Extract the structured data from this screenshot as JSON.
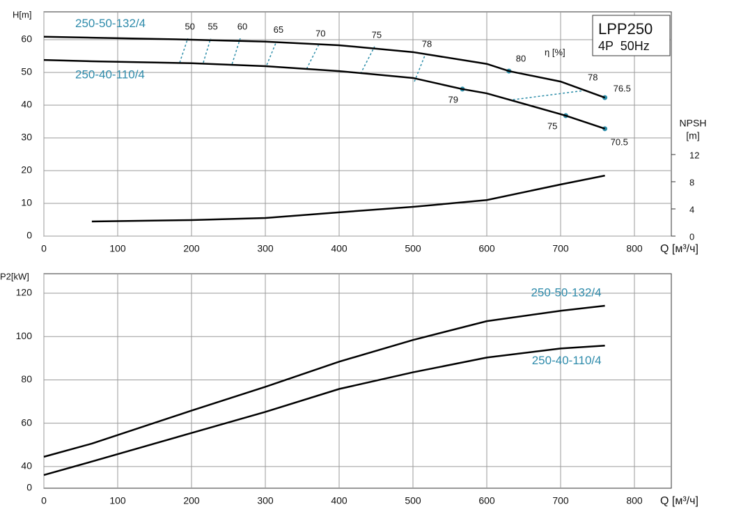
{
  "chart_data": [
    {
      "type": "line",
      "title": "LPP250",
      "subtitle": "4P  50Hz",
      "ylabel": "H[m]",
      "xlabel": "Q [м³/ч]",
      "y2label": "NPSH",
      "y2unit": "[m]",
      "eta_label": "η [%]",
      "xlim": [
        0,
        850
      ],
      "xticks": [
        0,
        100,
        200,
        300,
        400,
        500,
        600,
        700,
        800
      ],
      "ylim": [
        0,
        68.5
      ],
      "yticks": [
        0,
        10,
        20,
        30,
        40,
        50,
        60
      ],
      "y2lim": [
        0,
        33
      ],
      "y2ticks": [
        0,
        4,
        8,
        12
      ],
      "grid": true,
      "series_label_position": "start",
      "label_color": "#2e8bab",
      "marker_color": "#2a8ca8",
      "series": [
        {
          "name": "250-50-132/4",
          "color": "#000000",
          "x": [
            0,
            65,
            200,
            300,
            400,
            500,
            600,
            630,
            700,
            760
          ],
          "values": [
            60.9,
            60.6,
            60,
            59.4,
            58.3,
            56.2,
            52.6,
            50.4,
            47.2,
            42.3
          ]
        },
        {
          "name": "250-40-110/4",
          "color": "#000000",
          "x": [
            0,
            65,
            200,
            300,
            400,
            500,
            567,
            600,
            707,
            760
          ],
          "values": [
            53.8,
            53.4,
            52.8,
            51.9,
            50.4,
            48.3,
            44.9,
            43.6,
            36.8,
            32.8
          ]
        },
        {
          "color": "#000000",
          "axis": "y2",
          "x": [
            65,
            200,
            300,
            400,
            500,
            600,
            700,
            760
          ],
          "values": [
            2.15,
            2.36,
            2.67,
            3.5,
            4.3,
            5.3,
            7.6,
            8.9
          ]
        }
      ],
      "efficiency_lines": [
        {
          "value": 50,
          "x": [
            184,
            195
          ],
          "y": [
            53,
            60.4
          ]
        },
        {
          "value": 55,
          "x": [
            216,
            226
          ],
          "y": [
            53,
            60.4
          ]
        },
        {
          "value": 60,
          "x": [
            255,
            266
          ],
          "y": [
            52.6,
            60.4
          ]
        },
        {
          "value": 65,
          "x": [
            302,
            315
          ],
          "y": [
            52.3,
            59.4
          ]
        },
        {
          "value": 70,
          "x": [
            356,
            372
          ],
          "y": [
            51.1,
            58.3
          ]
        },
        {
          "value": 75,
          "x": [
            429,
            448
          ],
          "y": [
            49.6,
            57.9
          ]
        },
        {
          "value": 78,
          "x": [
            502,
            516
          ],
          "y": [
            47.2,
            55.1
          ]
        },
        {
          "value": 78,
          "x": [
            630,
            733
          ],
          "y": [
            41.5,
            44.5
          ]
        }
      ],
      "efficiency_points": [
        {
          "value": 80,
          "x": 630,
          "y": 50.4
        },
        {
          "value": 76.5,
          "x": 760,
          "y": 42.3
        },
        {
          "value": 79,
          "x": 567,
          "y": 44.9
        },
        {
          "value": 75,
          "x": 707,
          "y": 36.8
        },
        {
          "value": 70.5,
          "x": 760,
          "y": 32.8
        }
      ]
    },
    {
      "type": "line",
      "ylabel": "P2[kW]",
      "xlabel": "Q [м³/ч]",
      "y_origin_label": "0",
      "xlim": [
        0,
        850
      ],
      "xticks": [
        0,
        100,
        200,
        300,
        400,
        500,
        600,
        700,
        800
      ],
      "ylim": [
        30,
        129
      ],
      "yticks": [
        40,
        60,
        80,
        100,
        120
      ],
      "grid": true,
      "series_label_position": "end",
      "label_color": "#2e8bab",
      "series": [
        {
          "name": "250-50-132/4",
          "color": "#000000",
          "x": [
            0,
            65,
            200,
            300,
            400,
            500,
            600,
            700,
            760
          ],
          "values": [
            44.5,
            50.6,
            65.8,
            76.8,
            88.4,
            98.4,
            107.1,
            111.9,
            114.2
          ]
        },
        {
          "name": "250-40-110/4",
          "color": "#000000",
          "x": [
            0,
            65,
            200,
            300,
            400,
            500,
            600,
            700,
            760
          ],
          "values": [
            36.1,
            42.3,
            55.5,
            65.2,
            75.8,
            83.5,
            90.3,
            94.5,
            95.8
          ]
        }
      ]
    }
  ]
}
